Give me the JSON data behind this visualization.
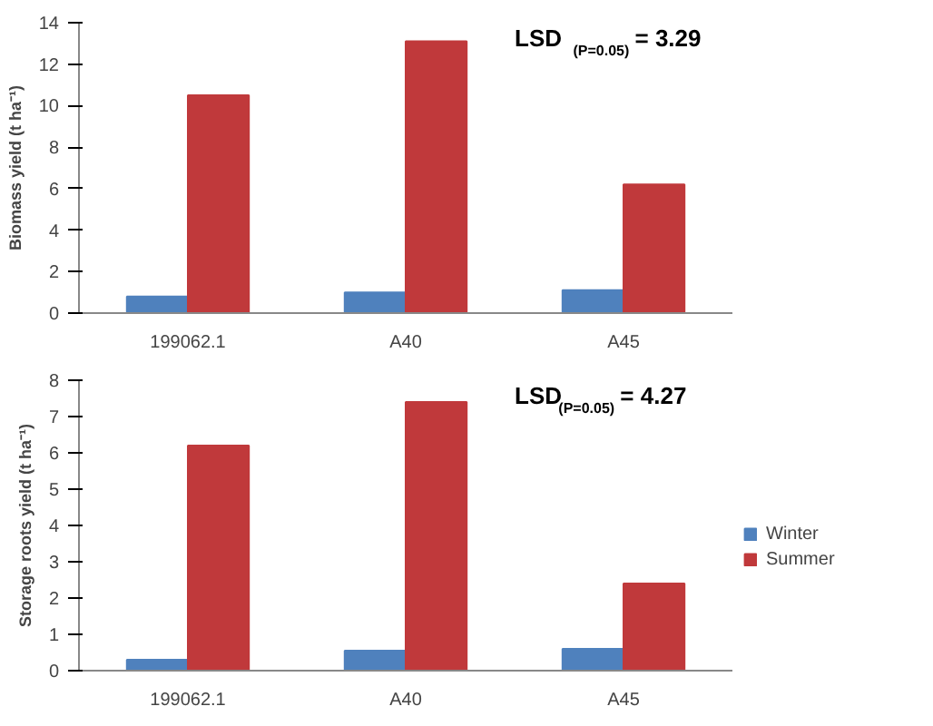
{
  "chart_data": [
    {
      "type": "bar",
      "categories": [
        "199062.1",
        "A40",
        "A45"
      ],
      "ylabel": "Biomass yield (t ha⁻¹)",
      "ylim": [
        0,
        14
      ],
      "yticks": [
        0,
        2,
        4,
        6,
        8,
        10,
        12,
        14
      ],
      "grid": false,
      "annotations": [
        "LSD $_{(P=0.05)}$= 3.29"
      ],
      "series": [
        {
          "color": "#4f81bd",
          "values": [
            0.8,
            1.0,
            1.1
          ]
        },
        {
          "color": "#c0393b",
          "values": [
            10.5,
            13.1,
            6.2
          ]
        }
      ]
    },
    {
      "type": "bar",
      "categories": [
        "199062.1",
        "A40",
        "A45"
      ],
      "ylabel": "Storage roots yield (t ha⁻¹)",
      "ylim": [
        0,
        8
      ],
      "yticks": [
        0,
        1,
        2,
        3,
        4,
        5,
        6,
        7,
        8
      ],
      "grid": false,
      "legend": "right",
      "annotations": [
        "LSD$_{(P=0.05)}$= 4.27"
      ],
      "series": [
        {
          "name": "Winter",
          "color": "#4f81bd",
          "values": [
            0.3,
            0.55,
            0.6
          ]
        },
        {
          "name": "Summer",
          "color": "#c0393b",
          "values": [
            6.2,
            7.4,
            2.4
          ]
        }
      ]
    }
  ]
}
